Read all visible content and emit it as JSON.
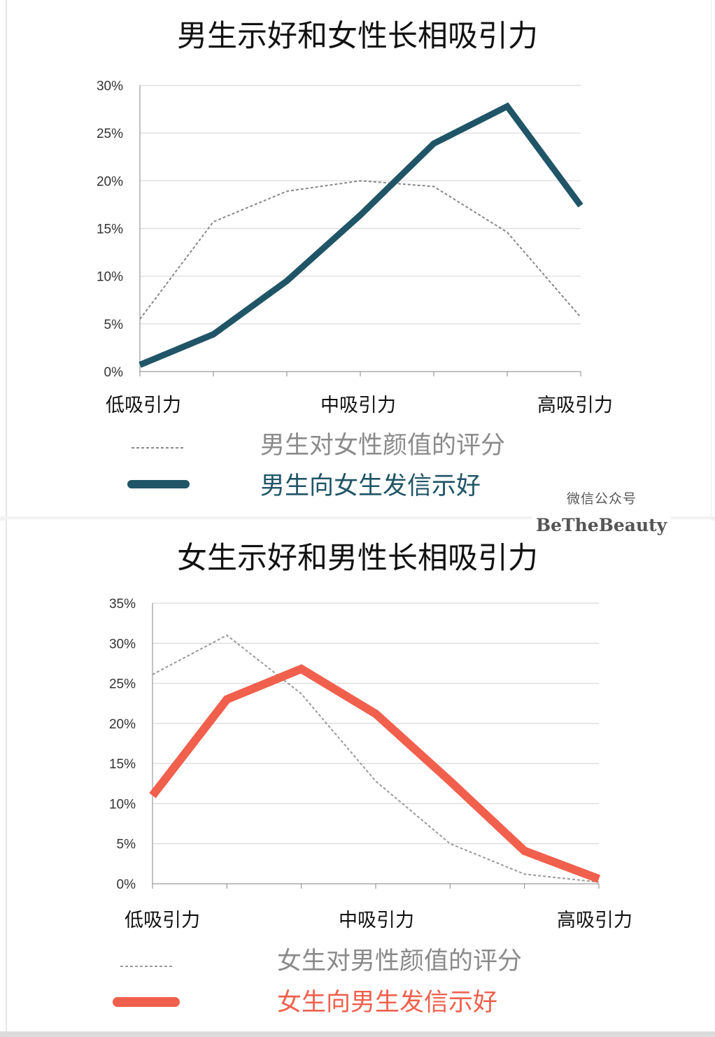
{
  "chart_data": [
    {
      "type": "line",
      "title": "男生示好和女性长相吸引力",
      "yticks": [
        "0%",
        "5%",
        "10%",
        "15%",
        "20%",
        "25%",
        "30%"
      ],
      "ylim": [
        0,
        30
      ],
      "x": [
        1,
        2,
        3,
        4,
        5,
        6,
        7
      ],
      "xtick_labels": [
        {
          "x": 1,
          "label": "低吸引力"
        },
        {
          "x": 4,
          "label": "中吸引力"
        },
        {
          "x": 7,
          "label": "高吸引力"
        }
      ],
      "grid": true,
      "legend_position": "bottom",
      "series": [
        {
          "name": "男生对女性颜值的评分",
          "style": "dashed",
          "color": "#888888",
          "values": [
            5.5,
            15.7,
            18.9,
            20.0,
            19.4,
            14.6,
            5.7
          ]
        },
        {
          "name": "男生向女生发信示好",
          "style": "solid",
          "color": "#1f5567",
          "values": [
            0.7,
            3.9,
            9.5,
            16.4,
            23.9,
            27.8,
            17.4
          ]
        }
      ]
    },
    {
      "type": "line",
      "title": "女生示好和男性长相吸引力",
      "yticks": [
        "0%",
        "5%",
        "10%",
        "15%",
        "20%",
        "25%",
        "30%",
        "35%"
      ],
      "ylim": [
        0,
        35
      ],
      "x": [
        1,
        2,
        3,
        4,
        5,
        6,
        7
      ],
      "xtick_labels": [
        {
          "x": 1,
          "label": "低吸引力"
        },
        {
          "x": 4,
          "label": "中吸引力"
        },
        {
          "x": 7,
          "label": "高吸引力"
        }
      ],
      "grid": true,
      "legend_position": "bottom",
      "series": [
        {
          "name": "女生对男性颜值的评分",
          "style": "dashed",
          "color": "#999999",
          "values": [
            26.1,
            31.0,
            23.7,
            12.8,
            5.0,
            1.2,
            0.2
          ]
        },
        {
          "name": "女生向男生发信示好",
          "style": "solid",
          "color": "#f0604d",
          "values": [
            11.0,
            23.0,
            26.8,
            21.2,
            12.8,
            4.1,
            0.6
          ]
        }
      ]
    }
  ],
  "watermark": {
    "line1": "微信公众号",
    "line2": "BeTheBeauty"
  }
}
